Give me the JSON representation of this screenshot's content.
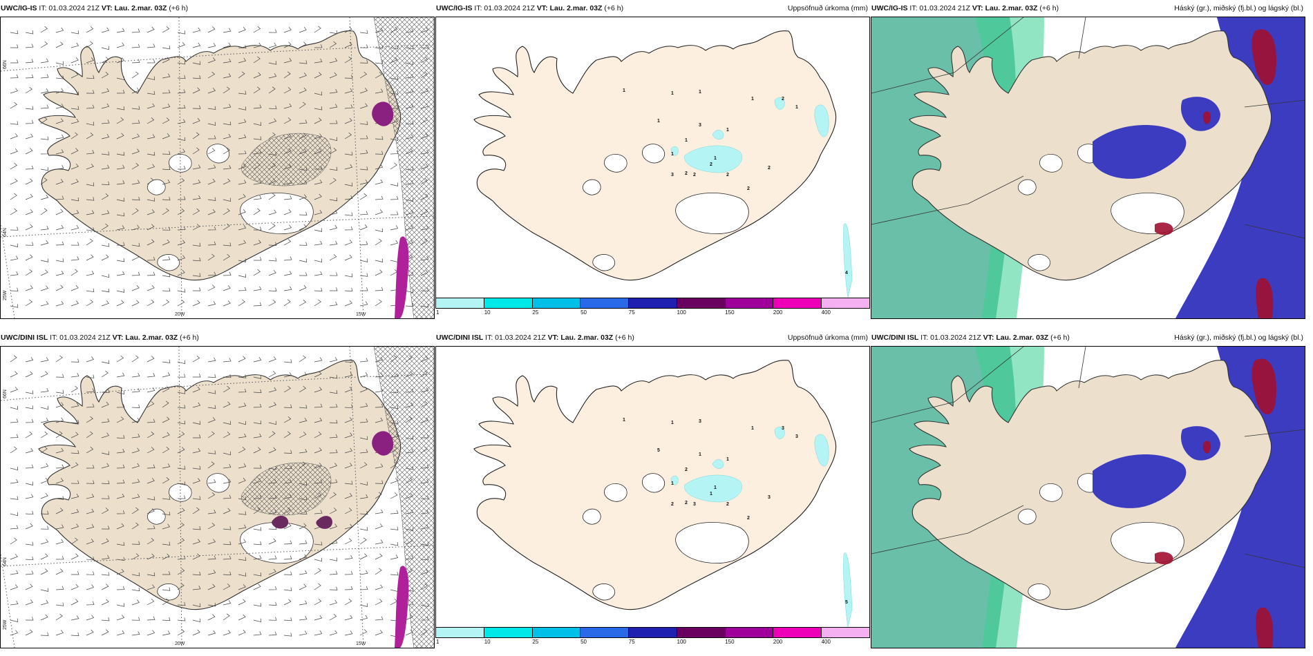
{
  "panels": [
    {
      "model_label": "UWC/IG-IS",
      "it_text": "IT: 01.03.2024 21Z",
      "vt_label": "VT: Lau. 2.mar. 03Z",
      "lead": "(+6 h)",
      "right_title": "",
      "type": "wind"
    },
    {
      "model_label": "UWC/IG-IS",
      "it_text": "IT: 01.03.2024 21Z",
      "vt_label": "VT: Lau. 2.mar. 03Z",
      "lead": "(+6 h)",
      "right_title": "Uppsöfnuð úrkoma (mm)",
      "type": "precip"
    },
    {
      "model_label": "UWC/IG-IS",
      "it_text": "IT: 01.03.2024 21Z",
      "vt_label": "VT: Lau. 2.mar. 03Z",
      "lead": "(+6 h)",
      "right_title": "Háský (gr.), miðský (fj.bl.) og lágský (bl.)",
      "type": "cloud"
    },
    {
      "model_label": "UWC/DINI ISL",
      "it_text": "IT: 01.03.2024 21Z",
      "vt_label": "VT: Lau. 2.mar. 03Z",
      "lead": "(+6 h)",
      "right_title": "",
      "type": "wind"
    },
    {
      "model_label": "UWC/DINI ISL",
      "it_text": "IT: 01.03.2024 21Z",
      "vt_label": "VT: Lau. 2.mar. 03Z",
      "lead": "(+6 h)",
      "right_title": "Uppsöfnuð úrkoma (mm)",
      "type": "precip"
    },
    {
      "model_label": "UWC/DINI ISL",
      "it_text": "IT: 01.03.2024 21Z",
      "vt_label": "VT: Lau. 2.mar. 03Z",
      "lead": "(+6 h)",
      "right_title": "Háský (gr.), miðský (fj.bl.) og lágský (bl.)",
      "type": "cloud"
    }
  ],
  "axis_labels": {
    "lat_66": "66N",
    "lat_64": "64N",
    "lon_25": "25W",
    "lon_20": "20W",
    "lon_15": "15W"
  },
  "colorbar": {
    "labels": [
      "1",
      "10",
      "25",
      "50",
      "75",
      "100",
      "150",
      "200",
      "400"
    ],
    "colors": [
      "#b4f4f4",
      "#00e8e8",
      "#00c0e8",
      "#2a6ae8",
      "#2020b0",
      "#6a0060",
      "#a0009a",
      "#ee00b8",
      "#f4b0f0"
    ]
  },
  "precip_labels_top": [
    "1",
    "1",
    "1",
    "1",
    "3",
    "1",
    "1",
    "1",
    "1",
    "2",
    "3",
    "2",
    "2",
    "2",
    "2",
    "2",
    "1",
    "2",
    "1",
    "4"
  ],
  "precip_labels_bottom": [
    "1",
    "1",
    "3",
    "5",
    "1",
    "1",
    "2",
    "1",
    "1",
    "3",
    "2",
    "2",
    "2",
    "1",
    "2",
    "3",
    "1",
    "3",
    "3",
    "5"
  ],
  "colors": {
    "land": "#ecdfcc",
    "land_precip": "#fcefe0",
    "high_cloud": "#5ab8a0",
    "mid_cloud": "#3c3cc0",
    "low_cloud": "#a01030",
    "coast": "#333333"
  }
}
